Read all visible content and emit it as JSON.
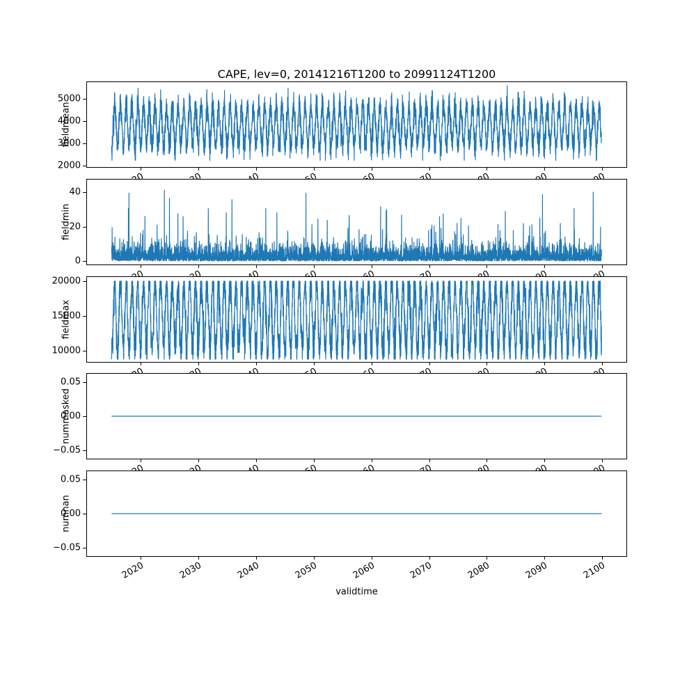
{
  "figure": {
    "background": "#ffffff"
  },
  "chart_data": {
    "type": "line",
    "title": "CAPE, lev=0, 20141216T1200 to 20991124T1200",
    "xlabel": "validtime",
    "line_color": "#1f77b4",
    "x_range": [
      2014.96,
      2099.9
    ],
    "xlim": [
      2010.7,
      2104.2
    ],
    "samples_per_year": 52,
    "x_ticks": [
      {
        "v": 2020,
        "label": "2020"
      },
      {
        "v": 2030,
        "label": "2030"
      },
      {
        "v": 2040,
        "label": "2040"
      },
      {
        "v": 2050,
        "label": "2050"
      },
      {
        "v": 2060,
        "label": "2060"
      },
      {
        "v": 2070,
        "label": "2070"
      },
      {
        "v": 2080,
        "label": "2080"
      },
      {
        "v": 2090,
        "label": "2090"
      },
      {
        "v": 2100,
        "label": "2100"
      }
    ],
    "subplots": [
      {
        "ylabel": "fieldmean",
        "ylim": [
          1950,
          5750
        ],
        "yticks": [
          {
            "v": 2000,
            "label": "2000"
          },
          {
            "v": 3000,
            "label": "3000"
          },
          {
            "v": 4000,
            "label": "4000"
          },
          {
            "v": 5000,
            "label": "5000"
          }
        ],
        "pattern": "seasonal",
        "base": 3780,
        "seasonal_amp": 900,
        "noise": 300,
        "clip": [
          2250,
          5600
        ],
        "seed": 11
      },
      {
        "ylabel": "fieldmin",
        "ylim": [
          -2,
          47.5
        ],
        "yticks": [
          {
            "v": 0,
            "label": "0"
          },
          {
            "v": 20,
            "label": "20"
          },
          {
            "v": 40,
            "label": "40"
          }
        ],
        "pattern": "spikes",
        "exp_scale": 3.2,
        "spike_prob": 0.006,
        "spike_min": 12,
        "spike_max": 44,
        "clip": [
          0,
          46
        ],
        "seed": 22
      },
      {
        "ylabel": "fieldmax",
        "ylim": [
          8400,
          20600
        ],
        "yticks": [
          {
            "v": 10000,
            "label": "10000"
          },
          {
            "v": 15000,
            "label": "15000"
          },
          {
            "v": 20000,
            "label": "20000"
          }
        ],
        "pattern": "seasonal",
        "base": 15000,
        "seasonal_amp": 5000,
        "noise": 1500,
        "clip": [
          8800,
          20000
        ],
        "seed": 33
      },
      {
        "ylabel": "nummasked",
        "ylim": [
          -0.062,
          0.062
        ],
        "yticks": [
          {
            "v": -0.05,
            "label": "−0.05"
          },
          {
            "v": 0,
            "label": "0.00"
          },
          {
            "v": 0.05,
            "label": "0.05"
          }
        ],
        "pattern": "constant",
        "value": 0
      },
      {
        "ylabel": "numnan",
        "ylim": [
          -0.062,
          0.062
        ],
        "yticks": [
          {
            "v": -0.05,
            "label": "−0.05"
          },
          {
            "v": 0,
            "label": "0.00"
          },
          {
            "v": 0.05,
            "label": "0.05"
          }
        ],
        "pattern": "constant",
        "value": 0
      }
    ]
  }
}
